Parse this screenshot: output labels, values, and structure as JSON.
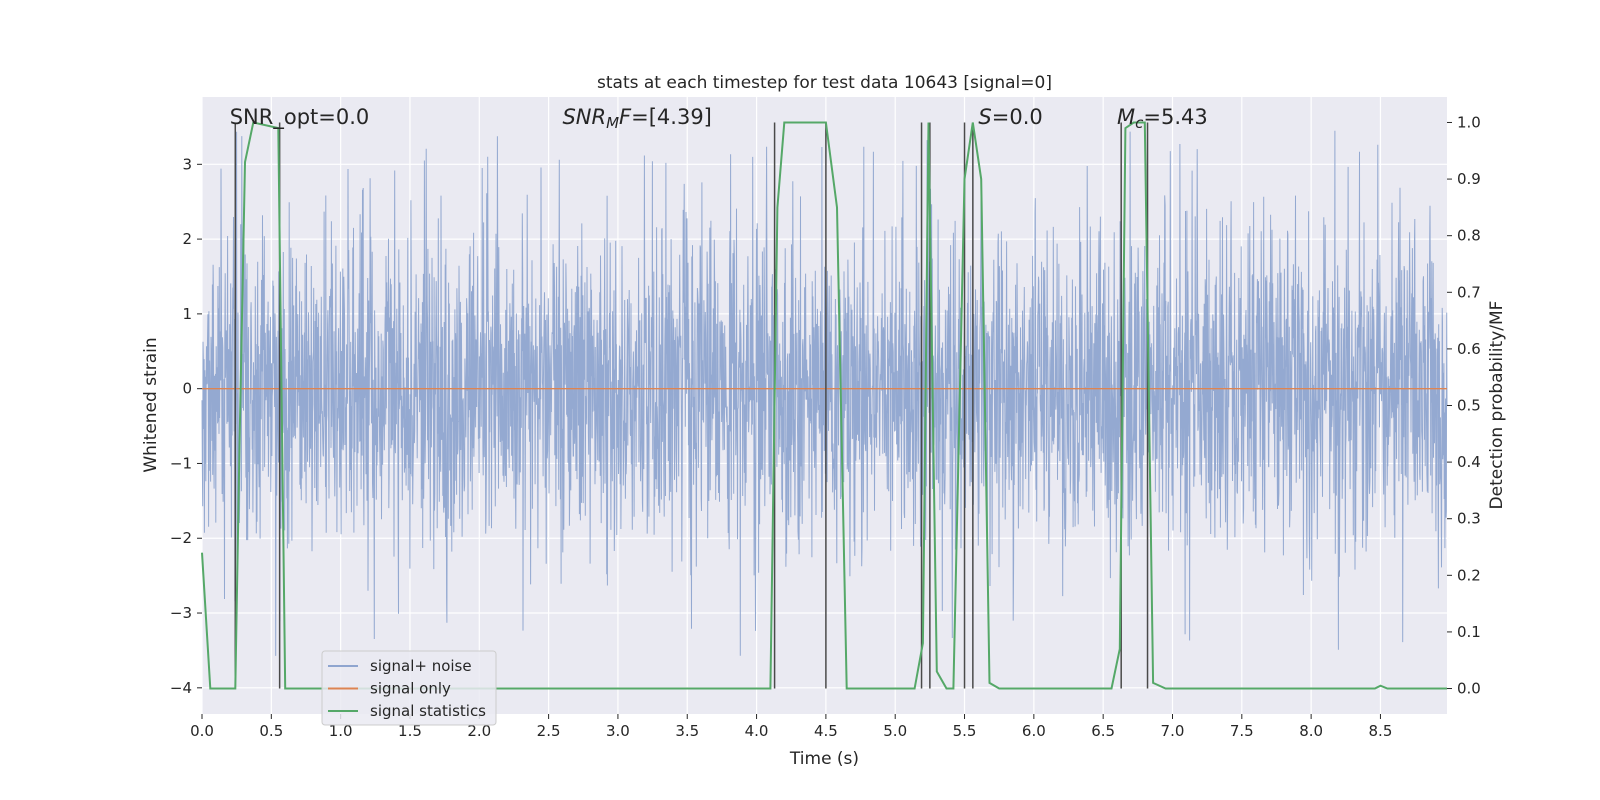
{
  "chart_data": {
    "type": "line",
    "title": "stats at each timestep for test data 10643 [signal=0]",
    "xlabel": "Time (s)",
    "ylabel": "Whitened strain",
    "y2label": "Detection probability/MF",
    "xlim": [
      0.0,
      8.98
    ],
    "ylim": [
      -4.35,
      3.9
    ],
    "y2lim": [
      -0.045,
      1.045
    ],
    "grid": true,
    "legend_position": "lower-left",
    "x_ticks": [
      0.0,
      0.5,
      1.0,
      1.5,
      2.0,
      2.5,
      3.0,
      3.5,
      4.0,
      4.5,
      5.0,
      5.5,
      6.0,
      6.5,
      7.0,
      7.5,
      8.0,
      8.5
    ],
    "x_tick_labels": [
      "0.0",
      "0.5",
      "1.0",
      "1.5",
      "2.0",
      "2.5",
      "3.0",
      "3.5",
      "4.0",
      "4.5",
      "5.0",
      "5.5",
      "6.0",
      "6.5",
      "7.0",
      "7.5",
      "8.0",
      "8.5"
    ],
    "y_ticks": [
      3,
      2,
      1,
      0,
      -1,
      -2,
      -3,
      -4
    ],
    "y_tick_labels": [
      "3",
      "2",
      "1",
      "0",
      "−1",
      "−2",
      "−3",
      "−4"
    ],
    "y2_ticks": [
      1.0,
      0.9,
      0.8,
      0.7,
      0.6,
      0.5,
      0.4,
      0.3,
      0.2,
      0.1,
      0.0
    ],
    "y2_tick_labels": [
      "1.0",
      "0.9",
      "0.8",
      "0.7",
      "0.6",
      "0.5",
      "0.4",
      "0.3",
      "0.2",
      "0.1",
      "0.0"
    ],
    "annotations": [
      {
        "label": "SNR_opt=0.0",
        "x": 0.2
      },
      {
        "label": "SNR_MF=[4.39]",
        "x": 2.6,
        "math": "SNR_MF"
      },
      {
        "label": "S=0.0",
        "x": 5.6,
        "math": "S"
      },
      {
        "label": "M_c=5.43",
        "x": 6.6,
        "math": "Mc"
      }
    ],
    "series": [
      {
        "name": "signal+ noise",
        "color": "#8fa5cf",
        "kind": "noise",
        "duration": 8.98,
        "n_samples": 3600,
        "typical_range": [
          -2.2,
          2.3
        ],
        "extreme_range": [
          -3.6,
          3.45
        ]
      },
      {
        "name": "signal only",
        "color": "#dd8452",
        "values": [
          0,
          0
        ]
      },
      {
        "name": "signal statistics",
        "color": "#55a868",
        "axis": "right",
        "points": [
          [
            0.0,
            0.24
          ],
          [
            0.06,
            0.0
          ],
          [
            0.24,
            0.0
          ],
          [
            0.27,
            0.42
          ],
          [
            0.31,
            0.93
          ],
          [
            0.37,
            1.0
          ],
          [
            0.55,
            0.99
          ],
          [
            0.6,
            0.0
          ],
          [
            0.68,
            0.0
          ],
          [
            4.1,
            0.0
          ],
          [
            4.15,
            0.85
          ],
          [
            4.2,
            1.0
          ],
          [
            4.5,
            1.0
          ],
          [
            4.58,
            0.85
          ],
          [
            4.65,
            0.0
          ],
          [
            5.14,
            0.0
          ],
          [
            5.2,
            0.08
          ],
          [
            5.24,
            1.0
          ],
          [
            5.3,
            0.03
          ],
          [
            5.37,
            0.0
          ],
          [
            5.42,
            0.0
          ],
          [
            5.5,
            0.9
          ],
          [
            5.56,
            1.0
          ],
          [
            5.62,
            0.9
          ],
          [
            5.68,
            0.01
          ],
          [
            5.75,
            0.0
          ],
          [
            6.56,
            0.0
          ],
          [
            6.62,
            0.07
          ],
          [
            6.66,
            0.99
          ],
          [
            6.72,
            1.0
          ],
          [
            6.8,
            1.0
          ],
          [
            6.86,
            0.01
          ],
          [
            6.95,
            0.0
          ],
          [
            8.46,
            0.0
          ],
          [
            8.5,
            0.005
          ],
          [
            8.55,
            0.0
          ],
          [
            8.98,
            0.0
          ]
        ]
      }
    ],
    "vlines": [
      0.24,
      0.56,
      4.13,
      4.5,
      5.19,
      5.25,
      5.5,
      5.56,
      6.63,
      6.82
    ]
  }
}
